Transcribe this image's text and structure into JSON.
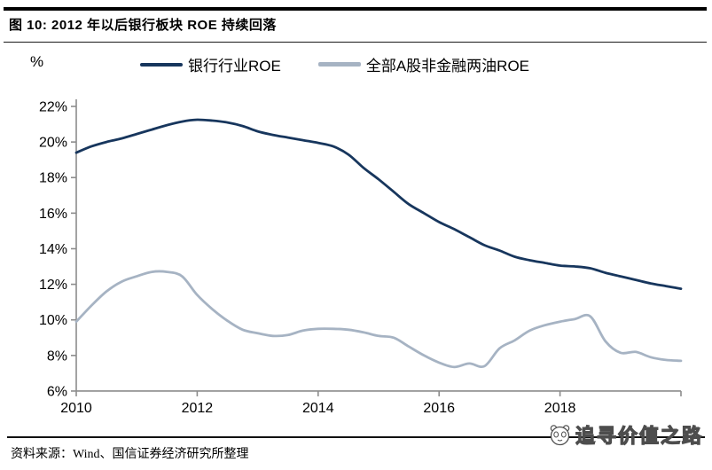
{
  "figure": {
    "title": "图 10: 2012 年以后银行板块 ROE 持续回落",
    "unit_label": "%",
    "source": "资料来源：Wind、国信证券经济研究所整理",
    "watermark": "追寻价值之路"
  },
  "legend": [
    {
      "label": "银行行业ROE",
      "color": "#17365d"
    },
    {
      "label": "全部A股非金融两油ROE",
      "color": "#a6b3c3"
    }
  ],
  "colors": {
    "series_bank": "#17365d",
    "series_ashare": "#a6b3c3",
    "axis": "#8c8c8c",
    "text": "#000000",
    "watermark_outline": "#4d4d4d"
  },
  "chart_data": {
    "type": "line",
    "title": "2012 年以后银行板块 ROE 持续回落",
    "xlabel": "",
    "ylabel": "%",
    "xlim": [
      2010,
      2020
    ],
    "ylim": [
      6,
      22
    ],
    "grid": false,
    "legend_position": "top",
    "x_ticks": [
      2010,
      2012,
      2014,
      2016,
      2018
    ],
    "y_ticks": [
      "22%",
      "20%",
      "18%",
      "16%",
      "14%",
      "12%",
      "10%",
      "8%",
      "6%"
    ],
    "x_start": 2010,
    "x_step": 0.25,
    "series": [
      {
        "name": "银行行业ROE",
        "color": "#17365d",
        "values": [
          19.4,
          19.75,
          20.0,
          20.2,
          20.45,
          20.7,
          20.95,
          21.15,
          21.25,
          21.2,
          21.1,
          20.9,
          20.6,
          20.4,
          20.25,
          20.1,
          19.95,
          19.75,
          19.3,
          18.55,
          17.9,
          17.2,
          16.5,
          16.0,
          15.5,
          15.1,
          14.65,
          14.2,
          13.9,
          13.55,
          13.35,
          13.2,
          13.05,
          13.0,
          12.9,
          12.65,
          12.45,
          12.25,
          12.05,
          11.9,
          11.75
        ]
      },
      {
        "name": "全部A股非金融两油ROE",
        "color": "#a6b3c3",
        "values": [
          9.9,
          10.8,
          11.6,
          12.15,
          12.45,
          12.7,
          12.7,
          12.45,
          11.4,
          10.6,
          9.95,
          9.45,
          9.25,
          9.1,
          9.15,
          9.4,
          9.5,
          9.5,
          9.45,
          9.3,
          9.1,
          9.0,
          8.5,
          8.0,
          7.6,
          7.35,
          7.55,
          7.4,
          8.4,
          8.85,
          9.4,
          9.7,
          9.9,
          10.05,
          10.2,
          8.8,
          8.15,
          8.2,
          7.9,
          7.75,
          7.7
        ]
      }
    ]
  }
}
